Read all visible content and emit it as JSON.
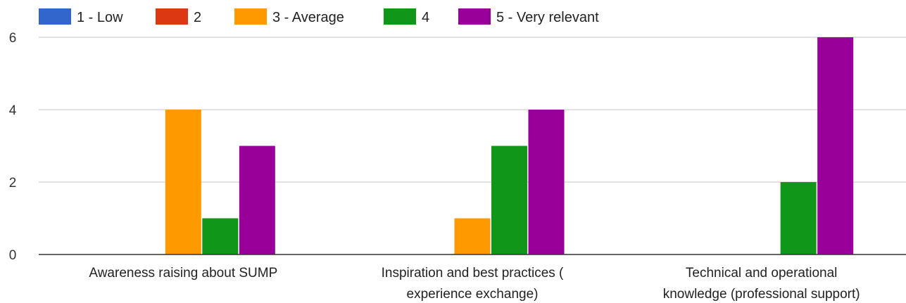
{
  "chart_data": {
    "type": "bar",
    "title": "",
    "xlabel": "",
    "ylabel": "",
    "ylim": [
      0,
      6
    ],
    "yticks": [
      0,
      2,
      4,
      6
    ],
    "grid": true,
    "legend_position": "top-left",
    "categories": [
      [
        "Awareness raising about SUMP"
      ],
      [
        "Inspiration and best practices (",
        "experience exchange)"
      ],
      [
        "Technical and operational",
        "knowledge (professional support)"
      ]
    ],
    "series": [
      {
        "name": "1 - Low",
        "color": "#3366cc",
        "values": [
          0,
          0,
          0
        ]
      },
      {
        "name": "2",
        "color": "#dc3912",
        "values": [
          0,
          0,
          0
        ]
      },
      {
        "name": "3 - Average",
        "color": "#ff9900",
        "values": [
          4,
          1,
          0
        ]
      },
      {
        "name": "4",
        "color": "#109618",
        "values": [
          1,
          3,
          2
        ]
      },
      {
        "name": "5 - Very relevant",
        "color": "#990099",
        "values": [
          3,
          4,
          6
        ]
      }
    ]
  }
}
